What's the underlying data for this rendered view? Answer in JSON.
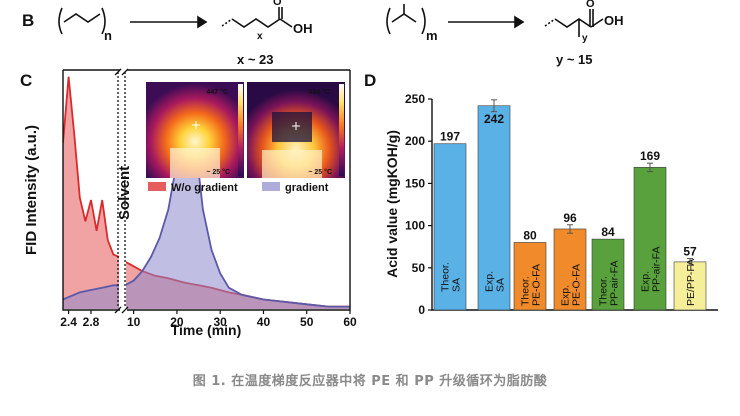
{
  "panel_labels": {
    "b": "B",
    "c": "C",
    "d": "D"
  },
  "scheme": {
    "pe_subscript": "n",
    "pe_acid_subscript": "x",
    "pe_acid_group": "OH",
    "pe_acid_carbonyl": "O",
    "pe_chain_length": "x ~ 23",
    "pp_subscript": "m",
    "pp_acid_subscript": "y",
    "pp_acid_group": "OH",
    "pp_acid_carbonyl": "O",
    "pp_chain_length": "y ~ 15"
  },
  "thermal": {
    "left": {
      "top_temp": "447 °C",
      "bottom_temp": "~ 25 °C"
    },
    "right": {
      "top_temp": "434 °C",
      "bottom_temp": "~ 25 °C"
    }
  },
  "colors": {
    "red_series": "#e03434",
    "blue_series": "#7b78c0",
    "bar_blue": "#5ab1e6",
    "bar_orange": "#f08a2a",
    "bar_green": "#58a13c",
    "bar_yellow": "#f6ef9a"
  },
  "chart_data": [
    {
      "type": "line",
      "title": "",
      "xlabel": "Time (min)",
      "ylabel": "FID Intensity (a.u.)",
      "break_label": "Solvent",
      "x_ticks_left": [
        "2.4",
        "2.8"
      ],
      "x_ticks_right": [
        "10",
        "20",
        "30",
        "40",
        "50",
        "60"
      ],
      "xlim_left": [
        2.3,
        3.3
      ],
      "xlim_right": [
        8,
        60
      ],
      "legend": [
        "W/o gradient",
        "gradient"
      ],
      "series": [
        {
          "name": "W/o gradient",
          "x_left": [
            2.3,
            2.4,
            2.5,
            2.6,
            2.7,
            2.8,
            2.9,
            3.0,
            3.1,
            3.2,
            3.3
          ],
          "y_left": [
            0.7,
            0.98,
            0.74,
            0.47,
            0.37,
            0.46,
            0.33,
            0.46,
            0.29,
            0.23,
            0.22
          ],
          "x_right": [
            8,
            10,
            12,
            15,
            18,
            20,
            22,
            25,
            28,
            32,
            35,
            40,
            45,
            50,
            55,
            60
          ],
          "y_right": [
            0.2,
            0.18,
            0.16,
            0.14,
            0.13,
            0.12,
            0.11,
            0.1,
            0.09,
            0.07,
            0.06,
            0.04,
            0.03,
            0.02,
            0.01,
            0.01
          ]
        },
        {
          "name": "gradient",
          "x_left": [
            2.3,
            2.4,
            2.6,
            2.8,
            3.0,
            3.2,
            3.3
          ],
          "y_left": [
            0.04,
            0.05,
            0.07,
            0.08,
            0.09,
            0.1,
            0.1
          ],
          "x_right": [
            8,
            10,
            12,
            14,
            16,
            18,
            20,
            21,
            22,
            23,
            24,
            25,
            26,
            28,
            30,
            32,
            35,
            40,
            45,
            50,
            55,
            60
          ],
          "y_right": [
            0.1,
            0.12,
            0.16,
            0.22,
            0.3,
            0.42,
            0.62,
            0.72,
            0.78,
            0.8,
            0.74,
            0.58,
            0.42,
            0.25,
            0.15,
            0.09,
            0.06,
            0.04,
            0.03,
            0.02,
            0.01,
            0.01
          ]
        }
      ]
    },
    {
      "type": "bar",
      "title": "",
      "xlabel": "",
      "ylabel": "Acid value (mgKOH/g)",
      "ylim": [
        0,
        250
      ],
      "yticks": [
        0,
        50,
        100,
        150,
        200,
        250
      ],
      "categories": [
        "Theor. SA",
        "Exp. SA",
        "Theor. PE-O-FA",
        "Exp. PE-O-FA",
        "Theor. PP-air-FA",
        "Exp. PP-air-FA",
        "PE/PP-FA"
      ],
      "values": [
        197,
        242,
        80,
        96,
        84,
        169,
        57
      ],
      "value_labels": [
        "197",
        "242",
        "80",
        "96",
        "84",
        "169",
        "57"
      ],
      "errors": [
        0,
        7,
        0,
        5,
        0,
        5,
        4
      ],
      "bar_colors": [
        "#5ab1e6",
        "#5ab1e6",
        "#f08a2a",
        "#f08a2a",
        "#58a13c",
        "#58a13c",
        "#f6ef9a"
      ]
    }
  ],
  "caption": "图 1. 在温度梯度反应器中将 PE 和 PP 升级循环为脂肪酸"
}
